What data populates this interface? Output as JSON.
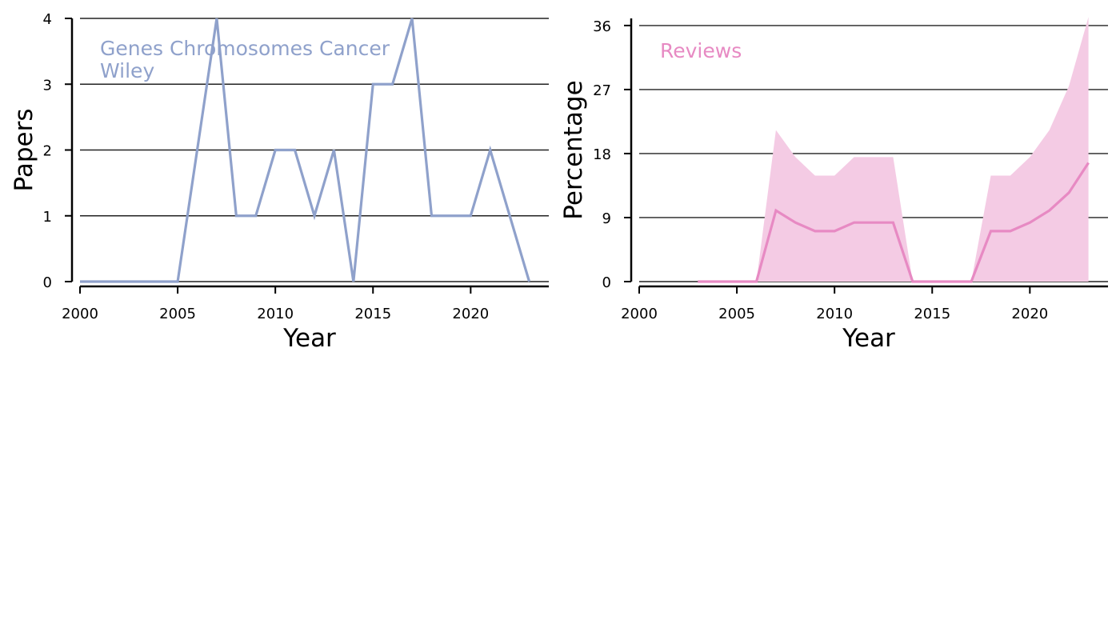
{
  "chart_data": [
    {
      "type": "line",
      "xlabel": "Year",
      "ylabel": "Papers",
      "xlim": [
        2000,
        2024
      ],
      "ylim": [
        0,
        4
      ],
      "xticks": [
        2000,
        2005,
        2010,
        2015,
        2020
      ],
      "yticks": [
        0,
        1,
        2,
        3,
        4
      ],
      "grid": "horizontal",
      "annotation": [
        "Genes Chromosomes Cancer",
        "Wiley"
      ],
      "color": "#8fa1cb",
      "series": [
        {
          "x": [
            2000,
            2001,
            2002,
            2003,
            2004,
            2005,
            2006,
            2007,
            2008,
            2009,
            2010,
            2011,
            2012,
            2013,
            2014,
            2015,
            2016,
            2017,
            2018,
            2019,
            2020,
            2021,
            2022,
            2023
          ],
          "values": [
            0,
            0,
            0,
            0,
            0,
            0,
            2,
            4,
            1,
            1,
            2,
            2,
            1,
            2,
            0,
            3,
            3,
            4,
            1,
            1,
            1,
            2,
            1,
            0
          ]
        }
      ]
    },
    {
      "type": "area",
      "xlabel": "Year",
      "ylabel": "Percentage",
      "xlim": [
        2000,
        2024
      ],
      "ylim": [
        0,
        37
      ],
      "xticks": [
        2000,
        2005,
        2010,
        2015,
        2020
      ],
      "yticks": [
        0,
        9,
        18,
        27,
        36
      ],
      "grid": "horizontal",
      "annotation": [
        "Reviews"
      ],
      "color": "#e78ac3",
      "band_color": "#f4cbe4",
      "series": [
        {
          "x": [
            2003,
            2004,
            2005,
            2006,
            2007,
            2008,
            2009,
            2010,
            2011,
            2012,
            2013,
            2014,
            2015,
            2016,
            2017,
            2018,
            2019,
            2020,
            2021,
            2022,
            2023
          ],
          "values": [
            0,
            0,
            0,
            0,
            10,
            8.3,
            7.1,
            7.1,
            8.3,
            8.3,
            8.3,
            0,
            0,
            0,
            0,
            7.1,
            7.1,
            8.3,
            10,
            12.5,
            16.7
          ],
          "upper": [
            0,
            0,
            0,
            0,
            21.3,
            17.5,
            14.9,
            14.9,
            17.5,
            17.5,
            17.5,
            0,
            0,
            0,
            0,
            14.9,
            14.9,
            17.5,
            21.3,
            27.5,
            37.2
          ],
          "lower": [
            0,
            0,
            0,
            0,
            0,
            0,
            0,
            0,
            0,
            0,
            0,
            0,
            0,
            0,
            0,
            0,
            0,
            0,
            0,
            0,
            0
          ]
        }
      ]
    }
  ]
}
